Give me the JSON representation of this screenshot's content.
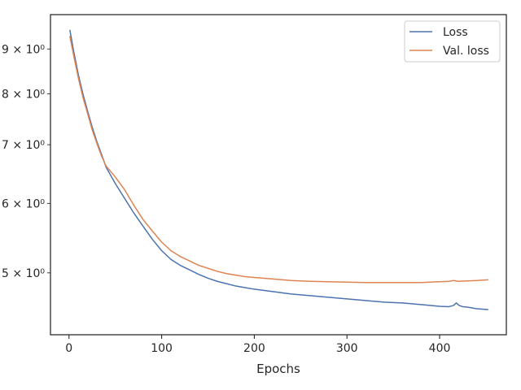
{
  "chart_data": {
    "type": "line",
    "title": "",
    "xlabel": "Epochs",
    "ylabel": "",
    "yscale": "log",
    "xlim": [
      -20,
      472
    ],
    "ylim": [
      4.25,
      9.85
    ],
    "grid": false,
    "legend_position": "top-right",
    "x_ticks": [
      0,
      100,
      200,
      300,
      400
    ],
    "x_tick_labels": [
      "0",
      "100",
      "200",
      "300",
      "400"
    ],
    "y_ticks": [
      5,
      6,
      7,
      8,
      9
    ],
    "y_tick_labels": [
      "5 × 10⁰",
      "6 × 10⁰",
      "7 × 10⁰",
      "8 × 10⁰",
      "9 × 10⁰"
    ],
    "series": [
      {
        "name": "Loss",
        "color": "#4c72b0",
        "x": [
          1,
          5,
          10,
          15,
          20,
          25,
          30,
          35,
          40,
          50,
          60,
          70,
          80,
          90,
          100,
          110,
          120,
          130,
          140,
          150,
          160,
          170,
          180,
          190,
          200,
          220,
          240,
          260,
          280,
          300,
          320,
          340,
          360,
          380,
          400,
          410,
          415,
          418,
          421,
          425,
          430,
          440,
          452
        ],
        "y": [
          9.45,
          8.95,
          8.42,
          8.0,
          7.65,
          7.33,
          7.06,
          6.83,
          6.6,
          6.32,
          6.08,
          5.85,
          5.65,
          5.46,
          5.3,
          5.18,
          5.1,
          5.04,
          4.98,
          4.93,
          4.89,
          4.86,
          4.83,
          4.81,
          4.79,
          4.76,
          4.73,
          4.71,
          4.69,
          4.67,
          4.65,
          4.63,
          4.62,
          4.6,
          4.58,
          4.575,
          4.59,
          4.62,
          4.59,
          4.575,
          4.57,
          4.55,
          4.54
        ]
      },
      {
        "name": "Val. loss",
        "color": "#dd8452",
        "x": [
          1,
          5,
          10,
          15,
          20,
          25,
          30,
          35,
          40,
          50,
          60,
          70,
          80,
          90,
          100,
          110,
          120,
          130,
          140,
          150,
          160,
          170,
          180,
          190,
          200,
          220,
          240,
          260,
          280,
          300,
          320,
          340,
          360,
          380,
          400,
          410,
          415,
          420,
          430,
          440,
          452
        ],
        "y": [
          9.3,
          8.85,
          8.35,
          7.93,
          7.6,
          7.28,
          7.03,
          6.8,
          6.62,
          6.43,
          6.22,
          5.97,
          5.75,
          5.58,
          5.42,
          5.3,
          5.22,
          5.16,
          5.1,
          5.06,
          5.02,
          4.99,
          4.97,
          4.95,
          4.94,
          4.92,
          4.9,
          4.89,
          4.885,
          4.88,
          4.875,
          4.875,
          4.875,
          4.875,
          4.885,
          4.89,
          4.9,
          4.89,
          4.895,
          4.9,
          4.91
        ]
      }
    ]
  }
}
